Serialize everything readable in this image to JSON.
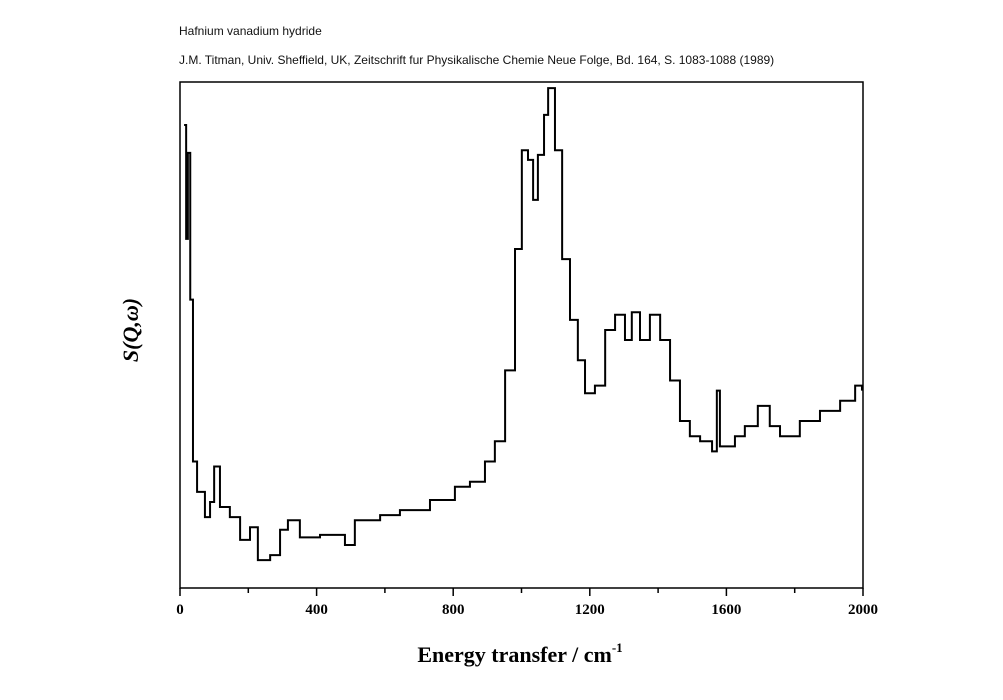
{
  "chart_data": {
    "type": "line",
    "title": "Hafnium vanadium hydride",
    "subtitle": "J.M. Titman, Univ. Sheffield, UK, Zeitschrift fur Physikalische Chemie Neue Folge, Bd. 164, S. 1083-1088 (1989)",
    "xlabel": "Energy transfer / cm",
    "xlabel_sup": "-1",
    "ylabel": "S(Q,ω)",
    "xlim": [
      0,
      2000
    ],
    "ylim": [
      0,
      100
    ],
    "xticks": [
      "0",
      "400",
      "800",
      "1200",
      "1600",
      "2000"
    ],
    "grid": false,
    "series": [
      {
        "name": "S(Q,ω)",
        "x": [
          12,
          18,
          23,
          30,
          38,
          50,
          73,
          88,
          100,
          117,
          146,
          176,
          205,
          228,
          264,
          293,
          316,
          351,
          410,
          483,
          512,
          586,
          644,
          732,
          805,
          849,
          893,
          922,
          952,
          981,
          1001,
          1019,
          1034,
          1048,
          1066,
          1078,
          1098,
          1119,
          1142,
          1165,
          1186,
          1215,
          1245,
          1274,
          1303,
          1323,
          1347,
          1376,
          1406,
          1435,
          1464,
          1493,
          1523,
          1558,
          1572,
          1581,
          1625,
          1654,
          1692,
          1727,
          1757,
          1815,
          1874,
          1933,
          1977,
          1997
        ],
        "y": [
          91.5,
          69,
          86,
          57,
          25,
          19,
          14,
          17,
          24,
          16,
          14,
          9.5,
          12,
          5.5,
          6.5,
          11.5,
          13.4,
          10,
          10.5,
          8.5,
          13.4,
          14.4,
          15.4,
          17.4,
          20,
          21,
          25,
          29,
          43,
          67,
          86.5,
          84.6,
          76.7,
          85.6,
          93.5,
          98.8,
          86.5,
          65,
          53,
          45,
          38.5,
          40,
          51,
          54,
          49,
          54.5,
          49,
          54,
          49,
          41,
          33,
          30,
          29,
          27,
          39,
          28,
          30,
          32,
          36,
          32,
          30,
          33,
          35,
          37,
          40,
          39
        ]
      }
    ]
  }
}
